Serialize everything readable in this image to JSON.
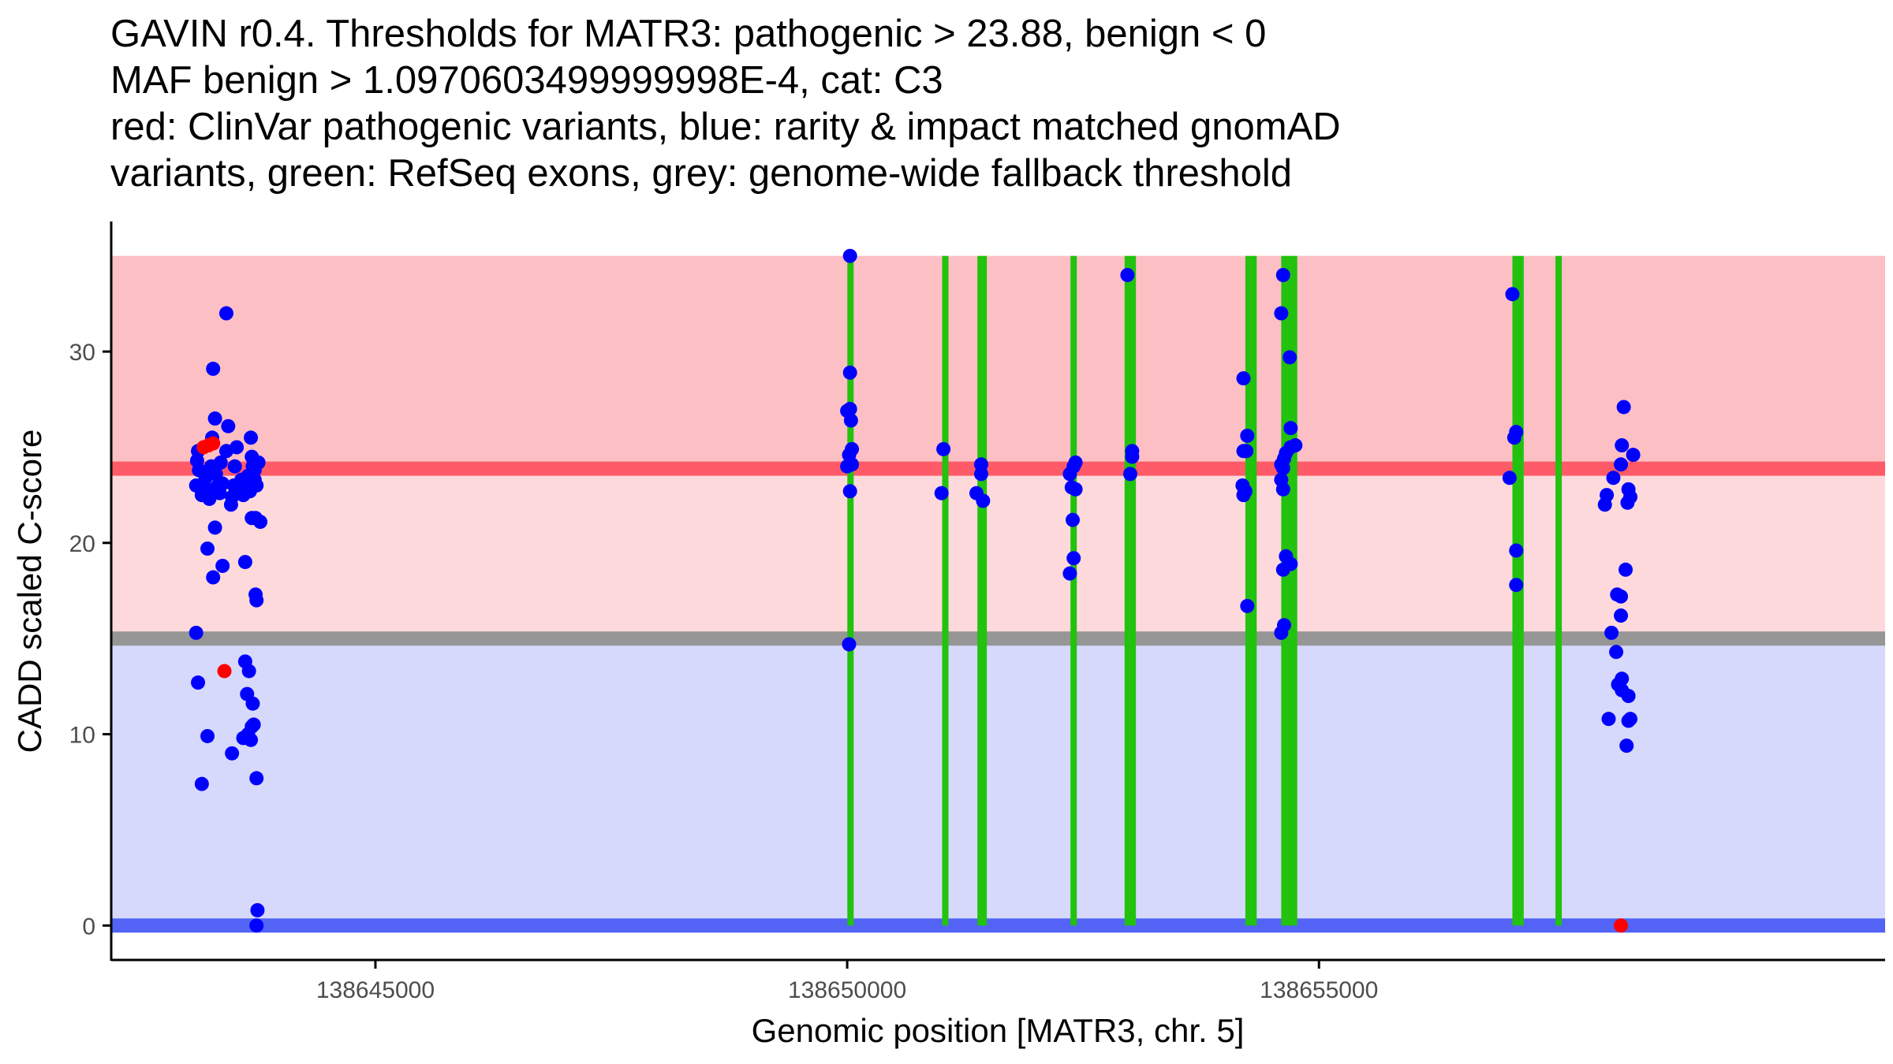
{
  "chart_data": {
    "type": "scatter",
    "title_lines": [
      "GAVIN r0.4. Thresholds for MATR3: pathogenic > 23.88, benign < 0",
      "MAF benign > 1.0970603499999998E-4, cat: C3",
      "red: ClinVar pathogenic variants, blue: rarity & impact matched gnomAD",
      "variants, green: RefSeq exons, grey: genome-wide fallback threshold"
    ],
    "xlabel": "Genomic position [MATR3, chr. 5]",
    "ylabel": "CADD scaled C-score",
    "xlim": [
      138642200,
      138661000
    ],
    "ylim": [
      -1.8,
      36.8
    ],
    "x_ticks": [
      {
        "value": 138645000,
        "label": "138645000"
      },
      {
        "value": 138650000,
        "label": "138650000"
      },
      {
        "value": 138655000,
        "label": "138655000"
      }
    ],
    "y_ticks": [
      {
        "value": 0,
        "label": "0"
      },
      {
        "value": 10,
        "label": "10"
      },
      {
        "value": 20,
        "label": "20"
      },
      {
        "value": 30,
        "label": "30"
      }
    ],
    "bands": [
      {
        "name": "pathogenic-zone",
        "y0": 23.88,
        "y1": 35,
        "color": "#fcbfc4"
      },
      {
        "name": "fallback-zone",
        "y0": 15,
        "y1": 23.88,
        "color": "#fdd9dc"
      },
      {
        "name": "benign-zone",
        "y0": 0,
        "y1": 15,
        "color": "#d6d9fb"
      }
    ],
    "thresholds": [
      {
        "name": "pathogenic-threshold",
        "value": 23.88,
        "color": "#fe5a68"
      },
      {
        "name": "fallback-threshold",
        "value": 15,
        "color": "#969696"
      },
      {
        "name": "benign-threshold",
        "value": 0,
        "color": "#5263f5"
      }
    ],
    "exons": [
      {
        "start": 138650010,
        "end": 138650060
      },
      {
        "start": 138651020,
        "end": 138651060
      },
      {
        "start": 138651380,
        "end": 138651480
      },
      {
        "start": 138652380,
        "end": 138652420
      },
      {
        "start": 138652940,
        "end": 138653060
      },
      {
        "start": 138654220,
        "end": 138654340
      },
      {
        "start": 138654600,
        "end": 138654770
      },
      {
        "start": 138657050,
        "end": 138657170
      },
      {
        "start": 138657520,
        "end": 138657560
      }
    ],
    "series": [
      {
        "name": "ClinVar pathogenic",
        "color": "#ff0000",
        "points": [
          [
            138643180,
            25.0
          ],
          [
            138643230,
            25.1
          ],
          [
            138643280,
            25.2
          ],
          [
            138643400,
            13.3
          ],
          [
            138658200,
            0.0
          ]
        ]
      },
      {
        "name": "gnomAD matched",
        "color": "#0000ff",
        "points": [
          [
            138643120,
            24.8
          ],
          [
            138643110,
            24.3
          ],
          [
            138643130,
            23.8
          ],
          [
            138643100,
            23.0
          ],
          [
            138643160,
            22.5
          ],
          [
            138643200,
            23.4
          ],
          [
            138643220,
            22.8
          ],
          [
            138643240,
            22.3
          ],
          [
            138643260,
            24.0
          ],
          [
            138643270,
            25.5
          ],
          [
            138643300,
            26.5
          ],
          [
            138643280,
            29.1
          ],
          [
            138643310,
            23.6
          ],
          [
            138643330,
            23.0
          ],
          [
            138643350,
            22.6
          ],
          [
            138643360,
            24.2
          ],
          [
            138643380,
            23.1
          ],
          [
            138643420,
            24.8
          ],
          [
            138643440,
            26.1
          ],
          [
            138643470,
            22.0
          ],
          [
            138643480,
            22.4
          ],
          [
            138643500,
            23.0
          ],
          [
            138643510,
            24.0
          ],
          [
            138643530,
            25.0
          ],
          [
            138643560,
            22.8
          ],
          [
            138643580,
            23.3
          ],
          [
            138643600,
            22.5
          ],
          [
            138643620,
            22.9
          ],
          [
            138643650,
            23.5
          ],
          [
            138643670,
            22.7
          ],
          [
            138643680,
            25.5
          ],
          [
            138643690,
            24.5
          ],
          [
            138643700,
            24.0
          ],
          [
            138643720,
            23.8
          ],
          [
            138643760,
            24.2
          ],
          [
            138643720,
            23.3
          ],
          [
            138643740,
            23.0
          ],
          [
            138643690,
            21.3
          ],
          [
            138643730,
            21.3
          ],
          [
            138643780,
            21.1
          ],
          [
            138643420,
            32.0
          ],
          [
            138643300,
            20.8
          ],
          [
            138643220,
            19.7
          ],
          [
            138643280,
            18.2
          ],
          [
            138643380,
            18.8
          ],
          [
            138643620,
            19.0
          ],
          [
            138643730,
            17.3
          ],
          [
            138643740,
            17.0
          ],
          [
            138643100,
            15.3
          ],
          [
            138643120,
            12.7
          ],
          [
            138643620,
            13.8
          ],
          [
            138643660,
            13.3
          ],
          [
            138643640,
            12.1
          ],
          [
            138643700,
            11.6
          ],
          [
            138643220,
            9.9
          ],
          [
            138643480,
            9.0
          ],
          [
            138643600,
            9.8
          ],
          [
            138643650,
            10.0
          ],
          [
            138643690,
            10.4
          ],
          [
            138643710,
            10.5
          ],
          [
            138643680,
            9.7
          ],
          [
            138643740,
            7.7
          ],
          [
            138643160,
            7.4
          ],
          [
            138643750,
            0.8
          ],
          [
            138643740,
            0.0
          ],
          [
            138650030,
            35.0
          ],
          [
            138650030,
            28.9
          ],
          [
            138650030,
            27.0
          ],
          [
            138650040,
            26.4
          ],
          [
            138650000,
            26.9
          ],
          [
            138650050,
            24.9
          ],
          [
            138650020,
            24.6
          ],
          [
            138650000,
            24.0
          ],
          [
            138650050,
            24.1
          ],
          [
            138650030,
            22.7
          ],
          [
            138650020,
            14.7
          ],
          [
            138651020,
            24.9
          ],
          [
            138651000,
            22.6
          ],
          [
            138651370,
            22.6
          ],
          [
            138651420,
            24.1
          ],
          [
            138651420,
            23.6
          ],
          [
            138651440,
            22.2
          ],
          [
            138652360,
            23.6
          ],
          [
            138652420,
            24.2
          ],
          [
            138652400,
            24.0
          ],
          [
            138652380,
            22.9
          ],
          [
            138652420,
            22.8
          ],
          [
            138652390,
            21.2
          ],
          [
            138652400,
            19.2
          ],
          [
            138652360,
            18.4
          ],
          [
            138652970,
            34.0
          ],
          [
            138653020,
            24.8
          ],
          [
            138653020,
            24.5
          ],
          [
            138653000,
            23.6
          ],
          [
            138654200,
            28.6
          ],
          [
            138654240,
            25.6
          ],
          [
            138654230,
            24.8
          ],
          [
            138654200,
            24.8
          ],
          [
            138654190,
            23.0
          ],
          [
            138654220,
            22.7
          ],
          [
            138654200,
            22.5
          ],
          [
            138654240,
            16.7
          ],
          [
            138654620,
            34.0
          ],
          [
            138654600,
            32.0
          ],
          [
            138654690,
            29.7
          ],
          [
            138654700,
            26.0
          ],
          [
            138654750,
            25.1
          ],
          [
            138654700,
            25.0
          ],
          [
            138654650,
            24.7
          ],
          [
            138654630,
            24.4
          ],
          [
            138654600,
            24.1
          ],
          [
            138654620,
            23.9
          ],
          [
            138654600,
            23.3
          ],
          [
            138654620,
            22.8
          ],
          [
            138654650,
            19.3
          ],
          [
            138654700,
            18.9
          ],
          [
            138654620,
            18.6
          ],
          [
            138654630,
            15.7
          ],
          [
            138654600,
            15.3
          ],
          [
            138657050,
            33.0
          ],
          [
            138657090,
            25.8
          ],
          [
            138657070,
            25.5
          ],
          [
            138657020,
            23.4
          ],
          [
            138657090,
            19.6
          ],
          [
            138657090,
            17.8
          ],
          [
            138658230,
            27.1
          ],
          [
            138658210,
            25.1
          ],
          [
            138658330,
            24.6
          ],
          [
            138658200,
            24.1
          ],
          [
            138658120,
            23.4
          ],
          [
            138658050,
            22.5
          ],
          [
            138658030,
            22.0
          ],
          [
            138658280,
            22.8
          ],
          [
            138658270,
            22.1
          ],
          [
            138658300,
            22.4
          ],
          [
            138658250,
            18.6
          ],
          [
            138658160,
            17.3
          ],
          [
            138658200,
            17.2
          ],
          [
            138658200,
            16.2
          ],
          [
            138658100,
            15.3
          ],
          [
            138658150,
            14.3
          ],
          [
            138658210,
            12.9
          ],
          [
            138658170,
            12.6
          ],
          [
            138658210,
            12.3
          ],
          [
            138658280,
            12.0
          ],
          [
            138658300,
            10.8
          ],
          [
            138658280,
            10.7
          ],
          [
            138658070,
            10.8
          ],
          [
            138658260,
            9.4
          ]
        ]
      }
    ],
    "axis_color": "#000000",
    "tick_label_color": "#4d4d4d",
    "exon_color": "#22c20e"
  }
}
